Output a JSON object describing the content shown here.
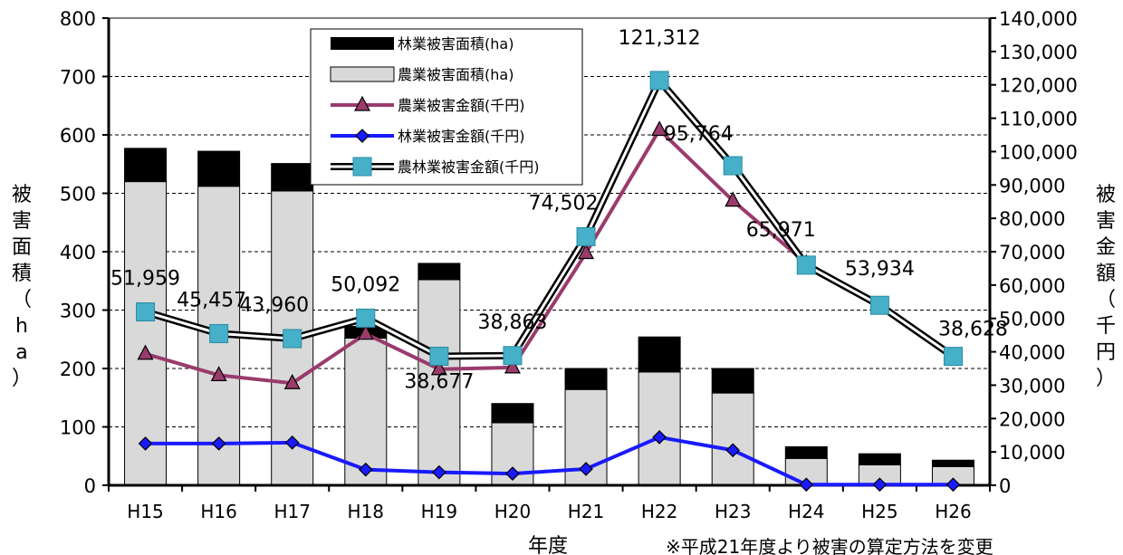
{
  "chart_data": {
    "type": "bar",
    "categories": [
      "H15",
      "H16",
      "H17",
      "H18",
      "H19",
      "H20",
      "H21",
      "H22",
      "H23",
      "H24",
      "H25",
      "H26"
    ],
    "xlabel": "年度",
    "ylabel_left": "被害面積（ha）",
    "ylabel_right": "被害金額（千円）",
    "ylim_left": [
      0,
      800
    ],
    "ylim_right": [
      0,
      140000
    ],
    "y_ticks_left": [
      "0",
      "100",
      "200",
      "300",
      "400",
      "500",
      "600",
      "700",
      "800"
    ],
    "y_ticks_right": [
      "0",
      "10,000",
      "20,000",
      "30,000",
      "40,000",
      "50,000",
      "60,000",
      "70,000",
      "80,000",
      "90,000",
      "100,000",
      "110,000",
      "120,000",
      "130,000",
      "140,000"
    ],
    "grid": true,
    "legend_position": "top-center",
    "note": "※平成21年度より被害の算定方法を変更",
    "series": [
      {
        "name": "林業被害面積(ha)",
        "type": "bar-stacked",
        "axis": "left",
        "color": "#000000",
        "values": [
          57,
          60,
          47,
          20,
          28,
          33,
          36,
          60,
          42,
          20,
          19,
          11
        ]
      },
      {
        "name": "農業被害面積(ha)",
        "type": "bar-stacked",
        "axis": "left",
        "color": "#d9d9d9",
        "values": [
          520,
          512,
          504,
          252,
          352,
          107,
          164,
          194,
          158,
          46,
          35,
          32
        ]
      },
      {
        "name": "農業被害金額(千円)",
        "type": "line",
        "axis": "right",
        "color": "#9a3b6c",
        "marker": "triangle",
        "values": [
          39400,
          33000,
          30600,
          45400,
          34800,
          35300,
          69600,
          106500,
          85300,
          66500,
          53600,
          38400
        ]
      },
      {
        "name": "林業被害金額(千円)",
        "type": "line",
        "axis": "right",
        "color": "#1a1aff",
        "marker": "diamond",
        "values": [
          12500,
          12500,
          12800,
          4700,
          3900,
          3500,
          4900,
          14400,
          10500,
          200,
          200,
          200
        ]
      },
      {
        "name": "農林業被害金額(千円)",
        "type": "line",
        "axis": "right",
        "color": "#46b0c8",
        "marker": "square",
        "values": [
          51959,
          45457,
          43960,
          50092,
          38677,
          38863,
          74502,
          121312,
          95764,
          65971,
          53934,
          38628
        ],
        "labels": [
          "51,959",
          "45,457",
          "43,960",
          "50,092",
          "38,677",
          "38,863",
          "74,502",
          "121,312",
          "95,764",
          "65,971",
          "53,934",
          "38,628"
        ]
      }
    ]
  }
}
